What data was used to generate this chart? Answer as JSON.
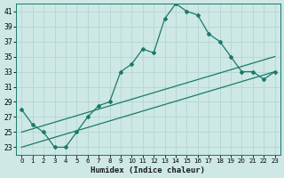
{
  "background_color": "#cde8e5",
  "grid_color": "#b8d8d5",
  "line_color": "#1a7a6a",
  "xlabel": "Humidex (Indice chaleur)",
  "xlim": [
    -0.5,
    23.5
  ],
  "ylim": [
    22,
    42
  ],
  "yticks": [
    23,
    25,
    27,
    29,
    31,
    33,
    35,
    37,
    39,
    41
  ],
  "xticks": [
    0,
    1,
    2,
    3,
    4,
    5,
    6,
    7,
    8,
    9,
    10,
    11,
    12,
    13,
    14,
    15,
    16,
    17,
    18,
    19,
    20,
    21,
    22,
    23
  ],
  "line1_x": [
    0,
    1,
    2,
    3,
    4,
    5,
    6,
    7,
    8,
    9,
    10,
    11,
    12,
    13,
    14,
    15,
    16,
    17,
    18,
    19,
    20,
    21,
    22,
    23
  ],
  "line1_y": [
    28,
    26,
    25,
    23,
    23,
    25,
    27,
    28.5,
    29,
    33,
    34,
    36,
    35.5,
    40,
    42,
    41,
    40.5,
    38,
    37,
    35,
    33,
    33,
    32,
    33
  ],
  "line2_x": [
    0,
    23
  ],
  "line2_y": [
    25,
    35
  ],
  "line3_x": [
    0,
    23
  ],
  "line3_y": [
    23,
    33
  ]
}
